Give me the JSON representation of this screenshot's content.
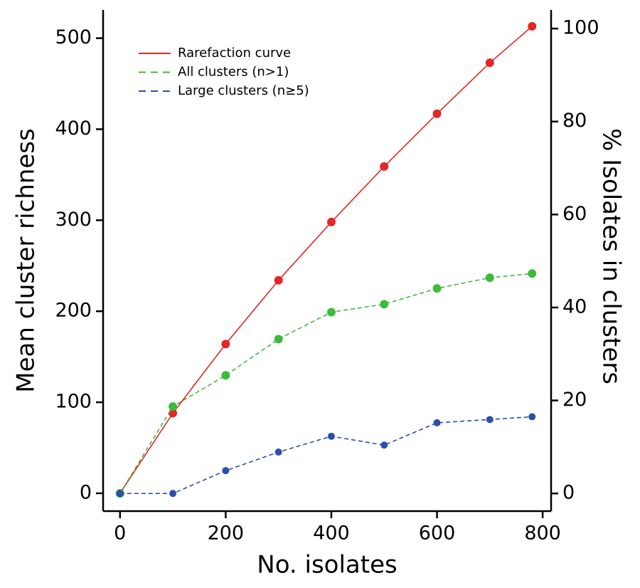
{
  "chart_data": {
    "type": "line",
    "x_label": "No. isolates",
    "y_label": "Mean cluster richness",
    "y2_label": "% Isolates in clusters",
    "x": [
      0,
      100,
      200,
      300,
      400,
      500,
      600,
      700,
      780
    ],
    "series": [
      {
        "name": "Rarefaction curve",
        "color": "#e32626",
        "dash": false,
        "values": [
          0,
          88,
          164,
          234,
          298,
          359,
          417,
          473,
          513
        ]
      },
      {
        "name": "All clusters (n>1)",
        "color": "#3dbb3d",
        "dash": true,
        "axis": "y2",
        "values": [
          0,
          18.7,
          25.4,
          33.2,
          39.0,
          40.7,
          44.1,
          46.4,
          47.3
        ]
      },
      {
        "name": "Large clusters (n≥5)",
        "color": "#2d4fa8",
        "dash": true,
        "axis": "y2",
        "values": [
          0,
          0,
          4.9,
          8.9,
          12.3,
          10.4,
          15.2,
          15.9,
          16.5
        ]
      }
    ],
    "xlim": [
      -32,
      816
    ],
    "xticks": [
      0,
      200,
      400,
      600,
      800
    ],
    "ylim": [
      -19.6,
      531
    ],
    "yticks": [
      0,
      100,
      200,
      300,
      400,
      500
    ],
    "y2lim": [
      -3.8,
      104
    ],
    "y2ticks": [
      0,
      20,
      40,
      60,
      80,
      100
    ],
    "legend": "upper left"
  }
}
